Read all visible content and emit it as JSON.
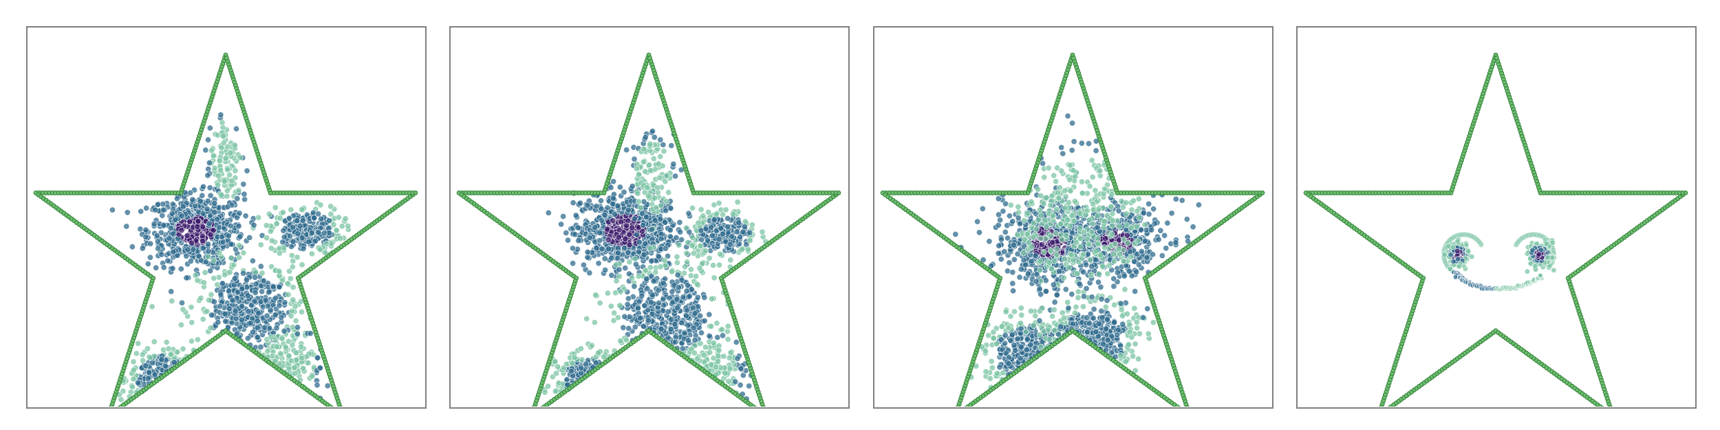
{
  "colors": {
    "star_outline": "#2e7d32",
    "star_outline_fill": "#6fbf73",
    "dense": "#3b1a6b",
    "mid": "#2f6b8e",
    "light": "#7cc4a4",
    "panel_border": "#808080"
  },
  "chart_data": [
    {
      "type": "scatter",
      "panel": 1,
      "grid": false,
      "outline": "star",
      "clusters": [
        {
          "cx": -0.15,
          "cy": 0.12,
          "sx": 0.12,
          "sy": 0.09,
          "n": 600,
          "density": "high"
        },
        {
          "cx": 0.4,
          "cy": 0.12,
          "sx": 0.09,
          "sy": 0.06,
          "n": 250,
          "density": "mid"
        },
        {
          "cx": 0.12,
          "cy": -0.28,
          "sx": 0.13,
          "sy": 0.12,
          "n": 420,
          "density": "mid"
        },
        {
          "cx": -0.32,
          "cy": -0.62,
          "sx": 0.08,
          "sy": 0.07,
          "n": 160,
          "density": "mid"
        },
        {
          "cx": 0.0,
          "cy": 0.45,
          "sx": 0.05,
          "sy": 0.14,
          "n": 110,
          "density": "low"
        },
        {
          "cx": 0.3,
          "cy": -0.55,
          "sx": 0.1,
          "sy": 0.1,
          "n": 120,
          "density": "low"
        }
      ]
    },
    {
      "type": "scatter",
      "panel": 2,
      "grid": false,
      "outline": "star",
      "clusters": [
        {
          "cx": -0.12,
          "cy": 0.12,
          "sx": 0.13,
          "sy": 0.1,
          "n": 620,
          "density": "high"
        },
        {
          "cx": 0.38,
          "cy": 0.1,
          "sx": 0.08,
          "sy": 0.06,
          "n": 230,
          "density": "mid"
        },
        {
          "cx": 0.08,
          "cy": -0.3,
          "sx": 0.14,
          "sy": 0.13,
          "n": 420,
          "density": "mid"
        },
        {
          "cx": -0.3,
          "cy": -0.62,
          "sx": 0.08,
          "sy": 0.06,
          "n": 150,
          "density": "mid"
        },
        {
          "cx": 0.02,
          "cy": 0.38,
          "sx": 0.06,
          "sy": 0.12,
          "n": 130,
          "density": "low"
        },
        {
          "cx": 0.3,
          "cy": -0.58,
          "sx": 0.09,
          "sy": 0.09,
          "n": 120,
          "density": "low"
        }
      ]
    },
    {
      "type": "scatter",
      "panel": 3,
      "grid": false,
      "outline": "star",
      "clusters": [
        {
          "cx": -0.12,
          "cy": 0.06,
          "sx": 0.11,
          "sy": 0.1,
          "n": 520,
          "density": "high"
        },
        {
          "cx": 0.22,
          "cy": 0.06,
          "sx": 0.1,
          "sy": 0.08,
          "n": 380,
          "density": "high"
        },
        {
          "cx": -0.2,
          "cy": -0.5,
          "sx": 0.12,
          "sy": 0.09,
          "n": 300,
          "density": "mid"
        },
        {
          "cx": 0.1,
          "cy": -0.42,
          "sx": 0.11,
          "sy": 0.09,
          "n": 280,
          "density": "mid"
        },
        {
          "cx": 0.03,
          "cy": 0.18,
          "sx": 0.22,
          "sy": 0.2,
          "n": 380,
          "density": "low"
        }
      ]
    },
    {
      "type": "scatter",
      "panel": 4,
      "grid": false,
      "outline": "star",
      "face": {
        "eyes": [
          {
            "cx": -0.19,
            "cy": 0.0,
            "r": 0.06,
            "n": 220
          },
          {
            "cx": 0.22,
            "cy": 0.0,
            "r": 0.06,
            "n": 220
          }
        ],
        "eye_swirls": [
          {
            "cx": -0.16,
            "cy": 0.0,
            "r": 0.1,
            "start_deg": 30,
            "end_deg": 230
          },
          {
            "cx": 0.19,
            "cy": 0.0,
            "r": 0.1,
            "start_deg": 150,
            "end_deg": -40
          }
        ],
        "smile": {
          "cx": 0.02,
          "cy": -0.22,
          "r": 0.24,
          "start_deg": 200,
          "end_deg": 330,
          "n": 120
        }
      }
    }
  ]
}
